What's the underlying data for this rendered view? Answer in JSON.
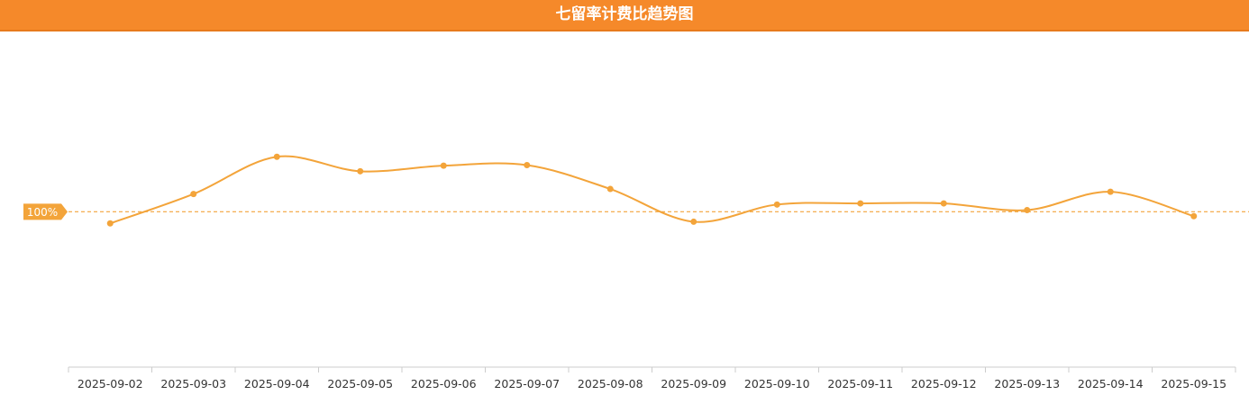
{
  "chart_data": {
    "type": "line",
    "title": "七留率计费比趋势图",
    "categories": [
      "2025-09-02",
      "2025-09-03",
      "2025-09-04",
      "2025-09-05",
      "2025-09-06",
      "2025-09-07",
      "2025-09-08",
      "2025-09-09",
      "2025-09-10",
      "2025-09-11",
      "2025-09-12",
      "2025-09-13",
      "2025-09-14",
      "2025-09-15"
    ],
    "values": [
      97.9,
      103.2,
      109.9,
      107.3,
      108.3,
      108.4,
      104.1,
      98.2,
      101.3,
      101.5,
      101.5,
      100.3,
      103.6,
      99.2
    ],
    "color": "#f3a43a",
    "ylim": [
      72,
      132
    ],
    "reference": {
      "value": 100,
      "label": "100%"
    },
    "smooth": true
  }
}
